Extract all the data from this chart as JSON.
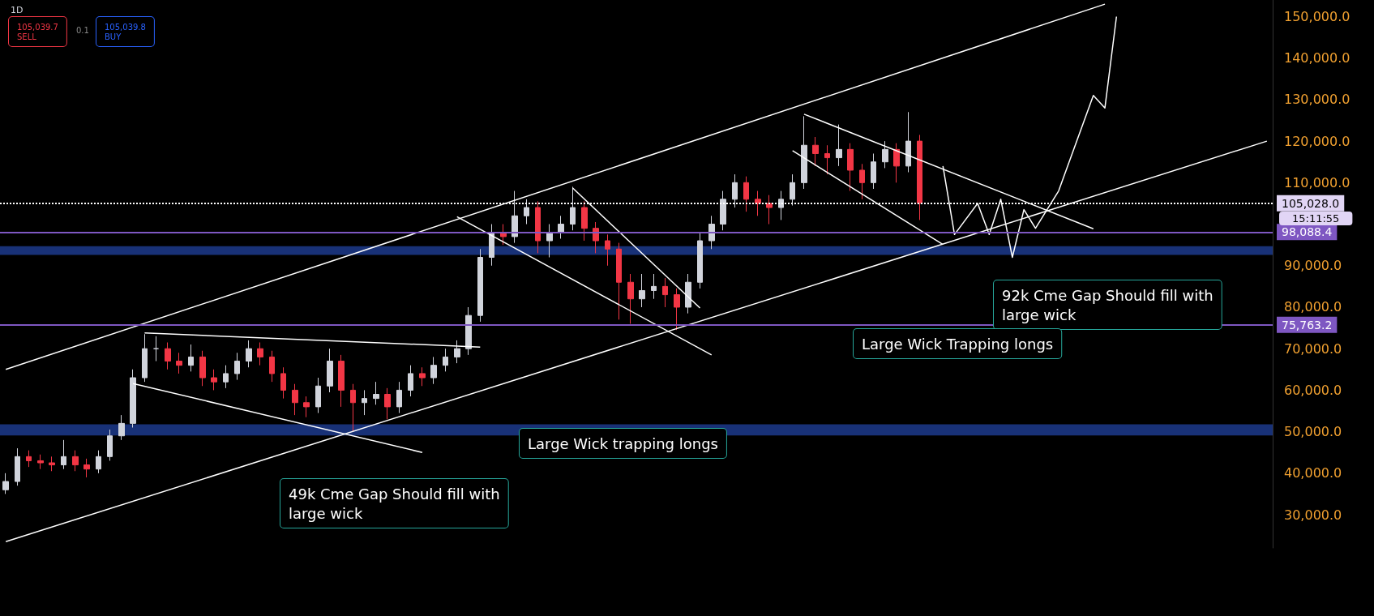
{
  "chart_data": {
    "type": "candlestick",
    "title": "1D",
    "categories": [
      null,
      null,
      null,
      null,
      null,
      null,
      null,
      null,
      null,
      null,
      null,
      null,
      null,
      null,
      null,
      null,
      null,
      null,
      null,
      null,
      null,
      null,
      null,
      null,
      null,
      null,
      null,
      null,
      null,
      null,
      null,
      null,
      null,
      null,
      null,
      null,
      null,
      null,
      null,
      null,
      null,
      null,
      null,
      null,
      null,
      null,
      null,
      null,
      null,
      null,
      null,
      null,
      null,
      null,
      null,
      null,
      null,
      null,
      null,
      null,
      null,
      null,
      null,
      null,
      null,
      null,
      null,
      null,
      null,
      null,
      null,
      null,
      null,
      null,
      null,
      null,
      null,
      null,
      null,
      null,
      null,
      null,
      null,
      null,
      null,
      null,
      null,
      null,
      null,
      null,
      null,
      null,
      null,
      null,
      null,
      null,
      null,
      null,
      null,
      null,
      null,
      null,
      null,
      null,
      null,
      null,
      null,
      null,
      null,
      null
    ],
    "ohlc": [
      [
        36000,
        40000,
        35000,
        38000
      ],
      [
        38000,
        46000,
        37000,
        44000
      ],
      [
        44000,
        45500,
        41500,
        43000
      ],
      [
        43000,
        44500,
        41000,
        42500
      ],
      [
        42500,
        44000,
        40500,
        42000
      ],
      [
        42000,
        48000,
        41000,
        44000
      ],
      [
        44000,
        45500,
        40500,
        42000
      ],
      [
        42000,
        43500,
        39000,
        41000
      ],
      [
        41000,
        45500,
        40000,
        44000
      ],
      [
        44000,
        50500,
        43000,
        49000
      ],
      [
        49000,
        54000,
        48000,
        52000
      ],
      [
        52000,
        65000,
        51000,
        63000
      ],
      [
        63000,
        73500,
        62000,
        70000
      ],
      [
        70000,
        73000,
        67000,
        70000
      ],
      [
        70000,
        71500,
        65000,
        67000
      ],
      [
        67000,
        69000,
        64000,
        66000
      ],
      [
        66000,
        71000,
        64500,
        68000
      ],
      [
        68000,
        69500,
        61000,
        63000
      ],
      [
        63000,
        65000,
        60000,
        62000
      ],
      [
        62000,
        66000,
        60500,
        64000
      ],
      [
        64000,
        69000,
        62500,
        67000
      ],
      [
        67000,
        72000,
        65500,
        70000
      ],
      [
        70000,
        71500,
        66000,
        68000
      ],
      [
        68000,
        69500,
        62000,
        64000
      ],
      [
        64000,
        65500,
        58000,
        60000
      ],
      [
        60000,
        61500,
        54000,
        57000
      ],
      [
        57000,
        58500,
        53500,
        56000
      ],
      [
        56000,
        63000,
        54500,
        61000
      ],
      [
        61000,
        70000,
        59500,
        67000
      ],
      [
        67000,
        68500,
        56000,
        60000
      ],
      [
        60000,
        61500,
        50000,
        57000
      ],
      [
        57000,
        60000,
        54000,
        58000
      ],
      [
        58000,
        62000,
        56500,
        59000
      ],
      [
        59000,
        60500,
        53000,
        56000
      ],
      [
        56000,
        62000,
        54500,
        60000
      ],
      [
        60000,
        66000,
        58500,
        64000
      ],
      [
        64000,
        65500,
        61000,
        63000
      ],
      [
        63000,
        68000,
        61500,
        66000
      ],
      [
        66000,
        70000,
        64500,
        68000
      ],
      [
        68000,
        72000,
        66500,
        70000
      ],
      [
        70000,
        80000,
        68500,
        78000
      ],
      [
        78000,
        94000,
        76500,
        92000
      ],
      [
        92000,
        100000,
        90000,
        98000
      ],
      [
        98000,
        100000,
        95000,
        97000
      ],
      [
        97000,
        108000,
        95500,
        102000
      ],
      [
        102000,
        106000,
        100000,
        104000
      ],
      [
        104000,
        105500,
        93000,
        96000
      ],
      [
        96000,
        100000,
        92000,
        98000
      ],
      [
        98000,
        102000,
        96500,
        100000
      ],
      [
        100000,
        109000,
        98500,
        104000
      ],
      [
        104000,
        105500,
        96000,
        99000
      ],
      [
        99000,
        100500,
        93000,
        96000
      ],
      [
        96000,
        97500,
        90000,
        94000
      ],
      [
        94000,
        95500,
        77000,
        86000
      ],
      [
        86000,
        88000,
        76000,
        82000
      ],
      [
        82000,
        88000,
        80000,
        84000
      ],
      [
        84000,
        88000,
        82000,
        85000
      ],
      [
        85000,
        87000,
        80000,
        83000
      ],
      [
        83000,
        84500,
        74500,
        80000
      ],
      [
        80000,
        88000,
        78500,
        86000
      ],
      [
        86000,
        98000,
        84500,
        96000
      ],
      [
        96000,
        102000,
        94000,
        100000
      ],
      [
        100000,
        108000,
        98500,
        106000
      ],
      [
        106000,
        112000,
        104000,
        110000
      ],
      [
        110000,
        111500,
        103000,
        106000
      ],
      [
        106000,
        108000,
        102000,
        105000
      ],
      [
        105000,
        107000,
        100000,
        104000
      ],
      [
        104000,
        108000,
        101000,
        106000
      ],
      [
        106000,
        112000,
        104500,
        110000
      ],
      [
        110000,
        126000,
        108500,
        119000
      ],
      [
        119000,
        121000,
        114000,
        117000
      ],
      [
        117000,
        119000,
        112000,
        116000
      ],
      [
        116000,
        124000,
        114000,
        118000
      ],
      [
        118000,
        119500,
        108000,
        113000
      ],
      [
        113000,
        114500,
        106000,
        110000
      ],
      [
        110000,
        117000,
        108500,
        115000
      ],
      [
        115000,
        120000,
        113500,
        118000
      ],
      [
        118000,
        119500,
        110000,
        114000
      ],
      [
        114000,
        127000,
        112500,
        120000
      ],
      [
        120000,
        121500,
        101000,
        105028
      ],
      null,
      null,
      null,
      null,
      null,
      null,
      null,
      null,
      null,
      null,
      null,
      null,
      null,
      null,
      null,
      null,
      null,
      null,
      null,
      null,
      null,
      null,
      null,
      null,
      null,
      null,
      null,
      null,
      null,
      null
    ],
    "series": [
      {
        "type": "line",
        "color": "#ffffff",
        "values": [
          65000,
          null,
          null,
          null,
          null,
          null,
          null,
          null,
          null,
          null,
          null,
          null,
          null,
          null,
          null,
          null,
          null,
          null,
          null,
          null,
          null,
          null,
          null,
          null,
          null,
          null,
          null,
          null,
          null,
          null,
          null,
          null,
          null,
          null,
          null,
          null,
          null,
          null,
          null,
          null,
          null,
          null,
          null,
          null,
          null,
          null,
          null,
          null,
          null,
          null,
          null,
          null,
          null,
          null,
          null,
          null,
          null,
          null,
          null,
          null,
          null,
          null,
          null,
          null,
          null,
          null,
          null,
          null,
          null,
          null,
          null,
          null,
          null,
          null,
          null,
          null,
          null,
          null,
          null,
          null,
          null,
          null,
          null,
          null,
          null,
          null,
          null,
          null,
          null,
          null,
          null,
          null,
          null,
          null,
          null,
          153000,
          null,
          null,
          null,
          null,
          null,
          null,
          null,
          null,
          null,
          null,
          null,
          null,
          null,
          null
        ]
      },
      {
        "type": "line",
        "color": "#ffffff",
        "values": [
          23500,
          null,
          null,
          null,
          null,
          null,
          null,
          null,
          null,
          null,
          null,
          null,
          null,
          null,
          null,
          null,
          null,
          null,
          null,
          null,
          null,
          null,
          null,
          null,
          null,
          null,
          null,
          null,
          null,
          null,
          null,
          null,
          null,
          null,
          null,
          null,
          null,
          null,
          null,
          null,
          null,
          null,
          null,
          null,
          null,
          null,
          null,
          null,
          null,
          null,
          null,
          null,
          null,
          null,
          null,
          null,
          null,
          null,
          null,
          null,
          null,
          null,
          null,
          null,
          null,
          null,
          null,
          null,
          null,
          null,
          null,
          null,
          null,
          null,
          null,
          null,
          null,
          null,
          null,
          null,
          null,
          null,
          null,
          null,
          null,
          null,
          null,
          null,
          null,
          null,
          null,
          null,
          null,
          null,
          null,
          null,
          null,
          null,
          null,
          null,
          null,
          null,
          null,
          null,
          null,
          null,
          null,
          null,
          null,
          120000
        ]
      },
      {
        "type": "line",
        "color": "#ffffff",
        "values": [
          null,
          null,
          null,
          null,
          null,
          null,
          null,
          null,
          null,
          null,
          null,
          null,
          73800,
          null,
          null,
          null,
          null,
          null,
          null,
          null,
          null,
          null,
          null,
          null,
          null,
          null,
          null,
          null,
          null,
          null,
          null,
          null,
          null,
          null,
          null,
          null,
          null,
          null,
          null,
          null,
          null,
          70400,
          null,
          null,
          null,
          null,
          null,
          null,
          null,
          null,
          null,
          null,
          null,
          null,
          null,
          null,
          null,
          null,
          null,
          null,
          null,
          null,
          null,
          null,
          null,
          null,
          null,
          null,
          null,
          null,
          null,
          null,
          null,
          null,
          null,
          null,
          null,
          null,
          null,
          null,
          null,
          null,
          null,
          null,
          null,
          null,
          null,
          null,
          null,
          null,
          null,
          null,
          null,
          null,
          null,
          null,
          null,
          null,
          null,
          null,
          null,
          null,
          null,
          null,
          null,
          null,
          null,
          null,
          null,
          null
        ]
      },
      {
        "type": "line",
        "color": "#ffffff",
        "values": [
          null,
          null,
          null,
          null,
          null,
          null,
          null,
          null,
          null,
          null,
          null,
          61600,
          null,
          null,
          null,
          null,
          null,
          null,
          null,
          null,
          null,
          null,
          null,
          null,
          null,
          null,
          null,
          null,
          null,
          null,
          null,
          null,
          null,
          null,
          null,
          null,
          45000,
          null,
          null,
          null,
          null,
          null,
          null,
          null,
          null,
          null,
          null,
          null,
          null,
          null,
          null,
          null,
          null,
          null,
          null,
          null,
          null,
          null,
          null,
          null,
          null,
          null,
          null,
          null,
          null,
          null,
          null,
          null,
          null,
          null,
          null,
          null,
          null,
          null,
          null,
          null,
          null,
          null,
          null,
          null,
          null,
          null,
          null,
          null,
          null,
          null,
          null,
          null,
          null,
          null,
          null,
          null,
          null,
          null,
          null,
          null,
          null,
          null,
          null,
          null,
          null,
          null,
          null,
          null,
          null,
          null,
          null,
          null,
          null,
          null
        ]
      },
      {
        "type": "line",
        "color": "#ffffff",
        "values": [
          null,
          null,
          null,
          null,
          null,
          null,
          null,
          null,
          null,
          null,
          null,
          null,
          null,
          null,
          null,
          null,
          null,
          null,
          null,
          null,
          null,
          null,
          null,
          null,
          null,
          null,
          null,
          null,
          null,
          null,
          null,
          null,
          null,
          null,
          null,
          null,
          null,
          null,
          null,
          null,
          null,
          null,
          null,
          null,
          null,
          null,
          null,
          null,
          null,
          108700,
          null,
          null,
          null,
          null,
          null,
          null,
          null,
          null,
          null,
          null,
          79800,
          null,
          null,
          null,
          null,
          null,
          null,
          null,
          null,
          null,
          null,
          null,
          null,
          null,
          null,
          null,
          null,
          null,
          null,
          null,
          null,
          null,
          null,
          null,
          null,
          null,
          null,
          null,
          null,
          null,
          null,
          null,
          null,
          null,
          null,
          null,
          null,
          null,
          null,
          null,
          null,
          null,
          null,
          null,
          null,
          null,
          null,
          null,
          null,
          null
        ]
      },
      {
        "type": "line",
        "color": "#ffffff",
        "values": [
          null,
          null,
          null,
          null,
          null,
          null,
          null,
          null,
          null,
          null,
          null,
          null,
          null,
          null,
          null,
          null,
          null,
          null,
          null,
          null,
          null,
          null,
          null,
          null,
          null,
          null,
          null,
          null,
          null,
          null,
          null,
          null,
          null,
          null,
          null,
          null,
          null,
          null,
          null,
          101800,
          null,
          null,
          null,
          null,
          null,
          null,
          null,
          null,
          null,
          null,
          null,
          null,
          null,
          null,
          null,
          null,
          null,
          null,
          null,
          null,
          null,
          68500,
          null,
          null,
          null,
          null,
          null,
          null,
          null,
          null,
          null,
          null,
          null,
          null,
          null,
          null,
          null,
          null,
          null,
          null,
          null,
          null,
          null,
          null,
          null,
          null,
          null,
          null,
          null,
          null,
          null,
          null,
          null,
          null,
          null,
          null,
          null,
          null,
          null,
          null,
          null,
          null,
          null,
          null,
          null,
          null,
          null,
          null,
          null,
          null
        ]
      },
      {
        "type": "line",
        "color": "#ffffff",
        "values": [
          null,
          null,
          null,
          null,
          null,
          null,
          null,
          null,
          null,
          null,
          null,
          null,
          null,
          null,
          null,
          null,
          null,
          null,
          null,
          null,
          null,
          null,
          null,
          null,
          null,
          null,
          null,
          null,
          null,
          null,
          null,
          null,
          null,
          null,
          null,
          null,
          null,
          null,
          null,
          null,
          null,
          null,
          null,
          null,
          null,
          null,
          null,
          null,
          null,
          null,
          null,
          null,
          null,
          null,
          null,
          null,
          null,
          null,
          null,
          null,
          null,
          null,
          null,
          null,
          null,
          null,
          null,
          null,
          null,
          126500,
          null,
          null,
          null,
          null,
          null,
          null,
          null,
          null,
          null,
          null,
          null,
          null,
          null,
          null,
          null,
          null,
          null,
          null,
          null,
          null,
          null,
          null,
          null,
          null,
          98900,
          null,
          null,
          null,
          null,
          null,
          null,
          null,
          null,
          null,
          null,
          null,
          null,
          null,
          null,
          null
        ]
      },
      {
        "type": "line",
        "color": "#ffffff",
        "values": [
          null,
          null,
          null,
          null,
          null,
          null,
          null,
          null,
          null,
          null,
          null,
          null,
          null,
          null,
          null,
          null,
          null,
          null,
          null,
          null,
          null,
          null,
          null,
          null,
          null,
          null,
          null,
          null,
          null,
          null,
          null,
          null,
          null,
          null,
          null,
          null,
          null,
          null,
          null,
          null,
          null,
          null,
          null,
          null,
          null,
          null,
          null,
          null,
          null,
          null,
          null,
          null,
          null,
          null,
          null,
          null,
          null,
          null,
          null,
          null,
          null,
          null,
          null,
          null,
          null,
          null,
          null,
          null,
          117700,
          null,
          null,
          null,
          null,
          null,
          null,
          null,
          null,
          null,
          null,
          null,
          null,
          95100,
          null,
          null,
          null,
          null,
          null,
          null,
          null,
          null,
          null,
          null,
          null,
          null,
          null,
          null,
          null,
          null,
          null,
          null,
          null,
          null,
          null,
          null,
          null,
          null,
          null,
          null,
          null,
          null
        ]
      },
      {
        "type": "line",
        "color": "#ffffff",
        "values": [
          null,
          null,
          null,
          null,
          null,
          null,
          null,
          null,
          null,
          null,
          null,
          null,
          null,
          null,
          null,
          null,
          null,
          null,
          null,
          null,
          null,
          null,
          null,
          null,
          null,
          null,
          null,
          null,
          null,
          null,
          null,
          null,
          null,
          null,
          null,
          null,
          null,
          null,
          null,
          null,
          null,
          null,
          null,
          null,
          null,
          null,
          null,
          null,
          null,
          null,
          null,
          null,
          null,
          null,
          null,
          null,
          null,
          null,
          null,
          null,
          null,
          null,
          null,
          null,
          null,
          null,
          null,
          null,
          null,
          null,
          null,
          null,
          null,
          null,
          null,
          null,
          null,
          null,
          null,
          null,
          null,
          114000,
          97500,
          null,
          105000,
          97500,
          106000,
          92000,
          103500,
          99000,
          null,
          108000,
          null,
          null,
          131000,
          128000,
          150000,
          null,
          null,
          null,
          null,
          null,
          null,
          null,
          null,
          null,
          null,
          null,
          null,
          null
        ]
      }
    ],
    "ylim": [
      22000,
      154000
    ],
    "yticks": [
      {
        "value": 30000,
        "label": "30,000.0"
      },
      {
        "value": 40000,
        "label": "40,000.0"
      },
      {
        "value": 50000,
        "label": "50,000.0"
      },
      {
        "value": 60000,
        "label": "60,000.0"
      },
      {
        "value": 70000,
        "label": "70,000.0"
      },
      {
        "value": 80000,
        "label": "80,000.0"
      },
      {
        "value": 90000,
        "label": "90,000.0"
      },
      {
        "value": 110000,
        "label": "110,000.0"
      },
      {
        "value": 120000,
        "label": "120,000.0"
      },
      {
        "value": 130000,
        "label": "130,000.0"
      },
      {
        "value": 140000,
        "label": "140,000.0"
      },
      {
        "value": 150000,
        "label": "150,000.0"
      }
    ],
    "tick_labels": "y",
    "grid": false,
    "ref_lines": [
      {
        "axis": "y",
        "value": 105028,
        "label": "105,028.0",
        "color": "#ffffff",
        "line_style": "dotted"
      },
      {
        "axis": "y",
        "value": 98088.4,
        "label": "98,088.4",
        "color": "#7e57c2",
        "line_style": "solid"
      },
      {
        "axis": "y",
        "value": 75763.2,
        "label": "75,763.2",
        "color": "#7e57c2",
        "line_style": "solid"
      }
    ],
    "bands": [
      {
        "axis": "y",
        "from": 49100,
        "to": 51800,
        "color": "#1c3a8c"
      },
      {
        "axis": "y",
        "from": 92600,
        "to": 94700,
        "color": "#1c3a8c"
      }
    ],
    "annotations": [
      "49k Cme Gap Should fill with\nlarge wick",
      "Large Wick trapping longs",
      "92k Cme Gap Should fill with\nlarge wick",
      "Large Wick Trapping longs",
      "15:11:55",
      "105,039.7\nSELL",
      "0.1",
      "105,039.8\nBUY"
    ]
  }
}
